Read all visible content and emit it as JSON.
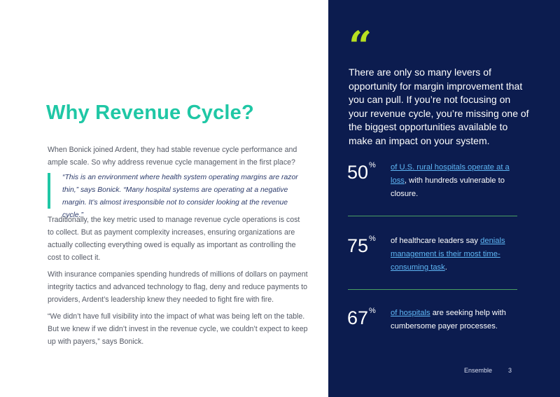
{
  "left": {
    "title": "Why Revenue Cycle?",
    "intro": "When Bonick joined Ardent, they had stable revenue cycle performance and ample scale. So why address revenue cycle management in the first place?",
    "quote": "“This is an environment where health system operating margins are razor thin,” says Bonick. “Many hospital systems are operating at a negative margin. It’s almost irresponsible not to consider looking at the revenue cycle.”",
    "paragraph2": "Traditionally, the key metric used to manage revenue cycle operations is cost to collect. But as payment complexity increases, ensuring organizations are actually collecting everything owed is equally as important as controlling the cost to collect it.",
    "paragraph3": "With insurance companies spending hundreds of millions of dollars on payment integrity tactics and advanced technology to flag, deny and reduce payments to providers, Ardent’s leadership knew they needed to fight fire with fire.",
    "paragraph4": "“We didn’t have full visibility into the impact of what was being left on the table. But we knew if we didn’t invest in the revenue cycle, we couldn’t expect to keep up with payers,” says Bonick."
  },
  "right": {
    "quote_mark": "“",
    "pull_quote": "There are only so many levers of opportunity for margin improvement that you can pull. If you’re not focusing on your revenue cycle, you’re missing one of the biggest opportunities available to make an impact on your system.",
    "stats": [
      {
        "number": "50",
        "unit": "%",
        "pre": "",
        "link": "of U.S. rural hospitals operate at a loss",
        "post": ", with hundreds vulnerable to closure."
      },
      {
        "number": "75",
        "unit": "%",
        "pre": "of healthcare leaders say ",
        "link": "denials management is their most time-consuming task",
        "post": "."
      },
      {
        "number": "67",
        "unit": "%",
        "pre": "",
        "link": "of hospitals",
        "post": " are seeking help with cumbersome payer processes."
      }
    ]
  },
  "footer": {
    "name": "Ensemble",
    "page": "3"
  },
  "colors": {
    "accent_teal": "#1fc7a5",
    "navy": "#0c1c4f",
    "lime": "#b7e021",
    "link_blue": "#5fb7f5",
    "divider_green": "#4a9e62"
  }
}
